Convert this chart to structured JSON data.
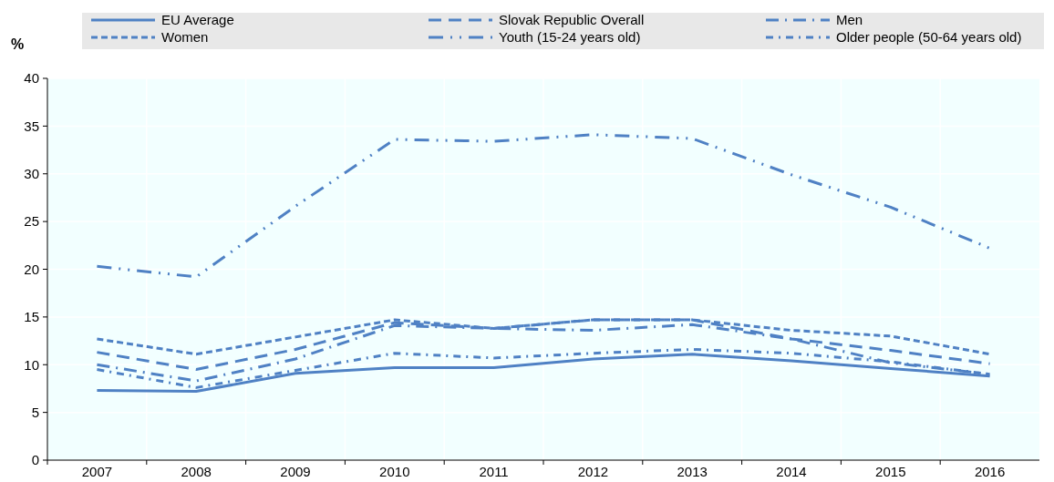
{
  "chart_data": {
    "type": "line",
    "ylabel": "%",
    "categories": [
      "2007",
      "2008",
      "2009",
      "2010",
      "2011",
      "2012",
      "2013",
      "2014",
      "2015",
      "2016"
    ],
    "ylim": [
      0,
      40
    ],
    "yticks": [
      0,
      5,
      10,
      15,
      20,
      25,
      30,
      35,
      40
    ],
    "grid": true,
    "legend": "top",
    "marker": "none",
    "series": [
      {
        "name": "EU Average",
        "color": "#4f81c4",
        "line_style": "solid",
        "values": [
          7.3,
          7.2,
          9.1,
          9.7,
          9.7,
          10.6,
          11.1,
          10.4,
          9.6,
          8.8
        ]
      },
      {
        "name": "Slovak Republic Overall",
        "color": "#4f81c4",
        "line_style": "longdash",
        "values": [
          11.3,
          9.5,
          11.6,
          14.4,
          13.8,
          14.7,
          14.7,
          12.7,
          11.5,
          10.1
        ]
      },
      {
        "name": "Men",
        "color": "#4f81c4",
        "line_style": "dashdot",
        "values": [
          10.0,
          8.3,
          10.6,
          14.1,
          13.8,
          13.6,
          14.2,
          12.7,
          10.2,
          9.0
        ]
      },
      {
        "name": "Women",
        "color": "#4f81c4",
        "line_style": "dashed",
        "values": [
          12.7,
          11.1,
          12.9,
          14.7,
          13.8,
          14.7,
          14.7,
          13.6,
          13.0,
          11.1
        ]
      },
      {
        "name": "Youth (15-24 years old)",
        "color": "#4f81c4",
        "line_style": "dashdotdot",
        "values": [
          20.3,
          19.2,
          26.6,
          33.6,
          33.4,
          34.1,
          33.7,
          29.9,
          26.5,
          22.2
        ]
      },
      {
        "name": "Older people (50-64 years old)",
        "color": "#4f81c4",
        "line_style": "shortdashdot",
        "values": [
          9.5,
          7.6,
          9.4,
          11.2,
          10.7,
          11.2,
          11.6,
          11.2,
          10.3,
          9.0
        ]
      }
    ]
  }
}
